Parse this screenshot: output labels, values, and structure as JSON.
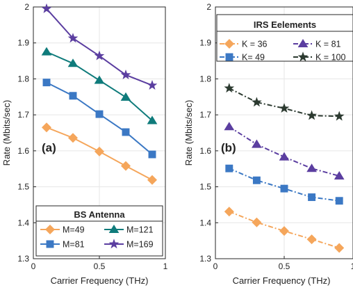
{
  "chart_data": [
    {
      "type": "line",
      "panel_tag": "(a)",
      "xlabel": "Carrier Frequency (THz)",
      "ylabel": "Rate (Mbits/sec)",
      "xlim": [
        0,
        1
      ],
      "ylim": [
        1.3,
        2
      ],
      "xticks": [
        "0",
        "0.5",
        "1"
      ],
      "yticks": [
        "1.3",
        "1.4",
        "1.5",
        "1.6",
        "1.7",
        "1.8",
        "1.9",
        "2"
      ],
      "grid": true,
      "legend": {
        "title": "BS Antenna",
        "placement": "bottom",
        "columns": 2
      },
      "x": [
        0.1,
        0.3,
        0.5,
        0.7,
        0.9
      ],
      "series": [
        {
          "name": "M=49",
          "values": [
            1.665,
            1.636,
            1.598,
            1.558,
            1.519
          ],
          "color": "#F5A65B",
          "marker": "diamond",
          "line": "solid"
        },
        {
          "name": "M=81",
          "values": [
            1.79,
            1.753,
            1.702,
            1.652,
            1.59
          ],
          "color": "#3B78C4",
          "marker": "square",
          "line": "solid"
        },
        {
          "name": "M=121",
          "values": [
            1.875,
            1.843,
            1.796,
            1.749,
            1.684
          ],
          "color": "#0F7B7B",
          "marker": "triangle",
          "line": "solid"
        },
        {
          "name": "M=169",
          "values": [
            1.995,
            1.913,
            1.864,
            1.811,
            1.782
          ],
          "color": "#5B3EA0",
          "marker": "star",
          "line": "solid"
        }
      ]
    },
    {
      "type": "line",
      "panel_tag": "(b)",
      "xlabel": "Carrier Frequency (THz)",
      "ylabel": "Rate (Mbits/sec)",
      "xlim": [
        0,
        1
      ],
      "ylim": [
        1.3,
        2
      ],
      "xticks": [
        "0",
        "0.5",
        "1"
      ],
      "yticks": [
        "1.3",
        "1.4",
        "1.5",
        "1.6",
        "1.7",
        "1.8",
        "1.9",
        "2"
      ],
      "grid": true,
      "legend": {
        "title": "IRS Eelements",
        "placement": "top",
        "columns": 2
      },
      "x": [
        0.1,
        0.3,
        0.5,
        0.7,
        0.9
      ],
      "series": [
        {
          "name": "K = 36",
          "values": [
            1.431,
            1.401,
            1.377,
            1.354,
            1.33
          ],
          "color": "#F5A65B",
          "marker": "diamond",
          "line": "dashdot"
        },
        {
          "name": "K= 49",
          "values": [
            1.551,
            1.518,
            1.495,
            1.471,
            1.461
          ],
          "color": "#3B78C4",
          "marker": "square",
          "line": "dashdot"
        },
        {
          "name": "K = 81",
          "values": [
            1.667,
            1.618,
            1.583,
            1.551,
            1.53
          ],
          "color": "#5B3EA0",
          "marker": "triangle",
          "line": "dashdot"
        },
        {
          "name": "K = 100",
          "values": [
            1.774,
            1.735,
            1.718,
            1.698,
            1.696
          ],
          "color": "#2C3A30",
          "marker": "star",
          "line": "dashdot"
        }
      ]
    }
  ]
}
